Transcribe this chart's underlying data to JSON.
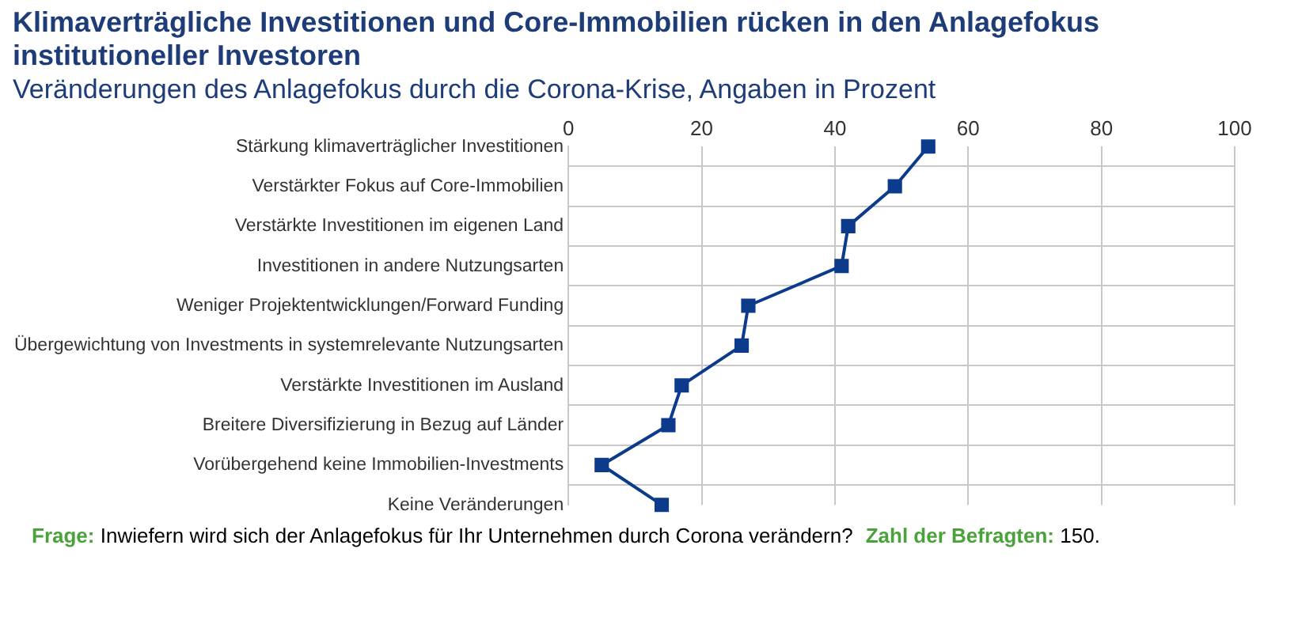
{
  "chart_data": {
    "type": "line",
    "orientation": "horizontal",
    "title": "Klimaverträgliche Investitionen und Core-Immobilien rücken in den Anlagefokus institutioneller Investoren",
    "subtitle": "Veränderungen des Anlagefokus durch die Corona-Krise, Angaben in Prozent",
    "categories": [
      "Stärkung klimaverträglicher Investitionen",
      "Verstärkter Fokus auf Core-Immobilien",
      "Verstärkte Investitionen im eigenen Land",
      "Investitionen in andere Nutzungsarten",
      "Weniger Projektentwicklungen/Forward Funding",
      "Übergewichtung von Investments in systemrelevante Nutzungsarten",
      "Verstärkte Investitionen im Ausland",
      "Breitere Diversifizierung in Bezug auf Länder",
      "Vorübergehend keine Immobilien-Investments",
      "Keine Veränderungen"
    ],
    "values": [
      54,
      49,
      42,
      41,
      27,
      26,
      17,
      15,
      5,
      14
    ],
    "color": "#0d3b8c",
    "xlim": [
      0,
      100
    ],
    "xticks": [
      0,
      20,
      40,
      60,
      80,
      100
    ],
    "grid": true,
    "marker": "square",
    "line_style": "solid",
    "legend": false,
    "annotations": [
      "Frage: Inwiefern wird sich der Anlagefokus für Ihr Unternehmen durch Corona verändern?",
      "Zahl der Befragten: 150."
    ]
  }
}
